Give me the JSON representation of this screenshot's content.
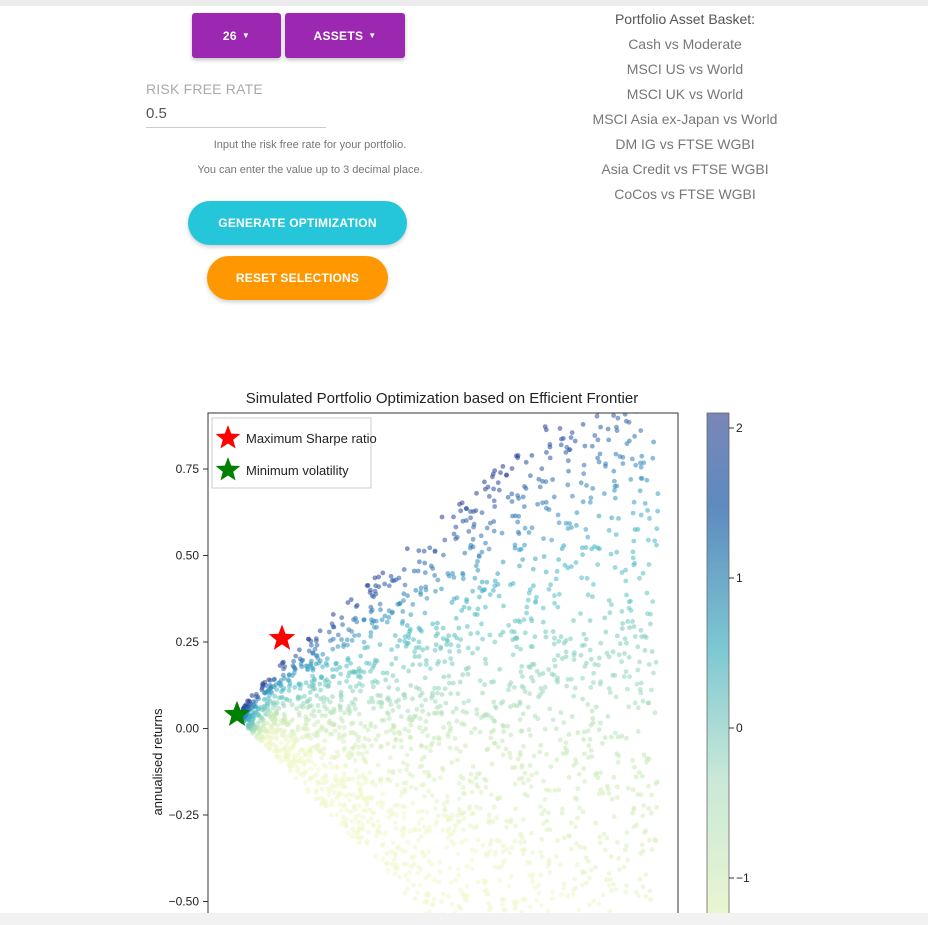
{
  "controls": {
    "num_dropdown": {
      "label": "26",
      "caret": "▼"
    },
    "assets_dropdown": {
      "label": "ASSETS",
      "caret": "▼"
    },
    "risk_free_rate": {
      "label": "RISK FREE RATE",
      "value": "0.5",
      "help_line1": "Input the risk free rate for your portfolio.",
      "help_line2": "You can enter the value up to 3 decimal place."
    },
    "generate_button": "GENERATE OPTIMIZATION",
    "reset_button": "RESET SELECTIONS"
  },
  "basket": {
    "title": "Portfolio Asset Basket:",
    "items": [
      "Cash vs Moderate",
      "MSCI US vs World",
      "MSCI UK vs World",
      "MSCI Asia ex-Japan vs World",
      "DM IG vs FTSE WGBI",
      "Asia Credit vs FTSE WGBI",
      "CoCos vs FTSE WGBI"
    ]
  },
  "colors": {
    "purple": "#9c27b0",
    "cyan": "#26c6da",
    "orange": "#ff9800",
    "max_sharpe_marker": "#ff0000",
    "min_vol_marker": "#008000"
  },
  "chart_data": {
    "type": "scatter",
    "title": "Simulated Portfolio Optimization based on Efficient Frontier",
    "ylabel": "annualised returns",
    "xlabel": "",
    "y_ticks": [
      "0.75",
      "0.50",
      "0.25",
      "0.00",
      "−0.25",
      "−0.50"
    ],
    "y_tick_values": [
      0.75,
      0.5,
      0.25,
      0.0,
      -0.25,
      -0.5
    ],
    "ylim": [
      -0.55,
      0.9
    ],
    "colormap": "YlGnBu",
    "colorbar_ticks": [
      "2",
      "1",
      "0",
      "−1"
    ],
    "colorbar_tick_values": [
      2,
      1,
      0,
      -1
    ],
    "colorbar_range": [
      -1.3,
      2.05
    ],
    "legend_position": "top-left",
    "legend": [
      {
        "label": "Maximum Sharpe ratio",
        "marker": "star",
        "color": "#ff0000"
      },
      {
        "label": "Minimum volatility",
        "marker": "star",
        "color": "#008000"
      }
    ],
    "special_points": [
      {
        "name": "Maximum Sharpe ratio",
        "y": 0.26
      },
      {
        "name": "Minimum volatility",
        "y": 0.04
      }
    ]
  }
}
